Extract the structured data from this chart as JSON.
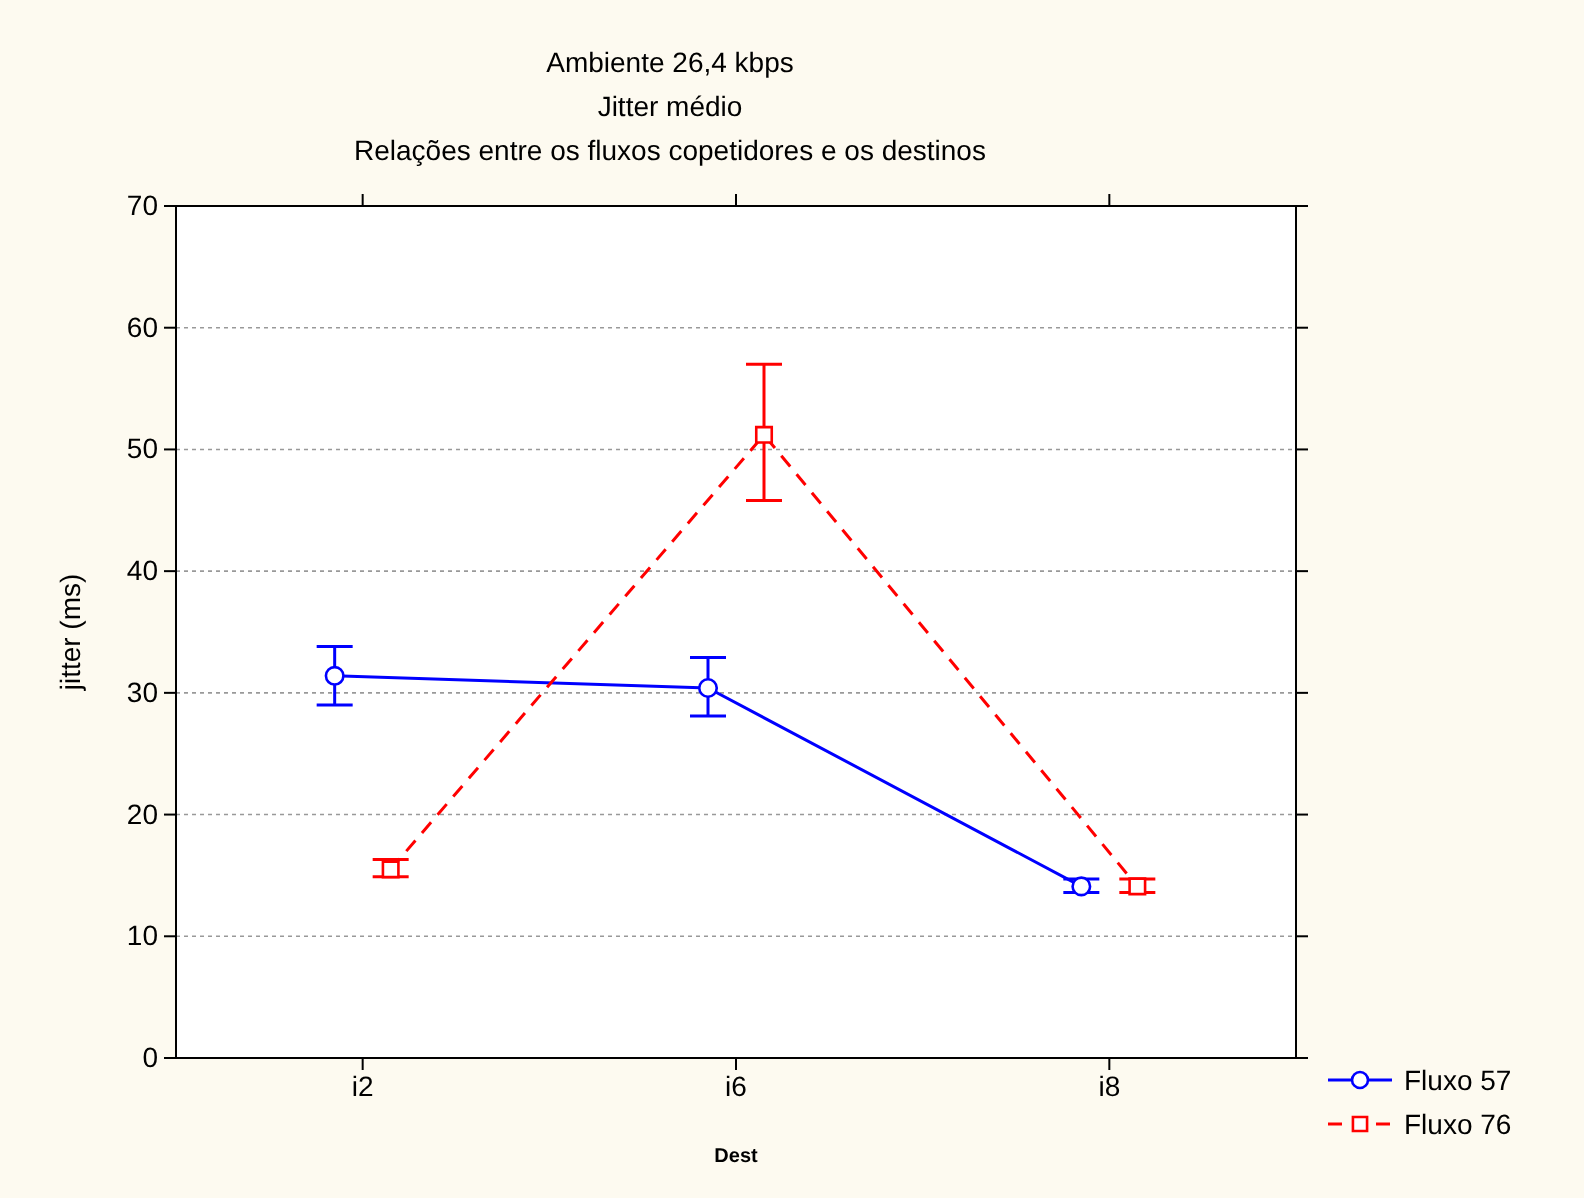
{
  "chart_data": {
    "type": "line",
    "title": "Ambiente 26,4 kbps",
    "subtitle": "Jitter médio\nRelações entre os fluxos copetidores e os destinos",
    "xlabel": "Dest",
    "ylabel": "jitter (ms)",
    "categories": [
      "i2",
      "i6",
      "i8"
    ],
    "ylim": [
      0,
      70
    ],
    "yticks": [
      0,
      10,
      20,
      30,
      40,
      50,
      60,
      70
    ],
    "grid": "y",
    "legend": "bottom right",
    "series": [
      {
        "name": "Fluxo 57",
        "color": "#0000ff",
        "marker": "circle",
        "line_style": "solid",
        "values": [
          31.4,
          30.4,
          14.1
        ],
        "errors": [
          [
            29.0,
            33.8
          ],
          [
            28.1,
            32.9
          ],
          [
            13.6,
            14.7
          ]
        ]
      },
      {
        "name": "Fluxo 76",
        "color": "#ff0000",
        "marker": "square",
        "line_style": "dashed",
        "values": [
          15.5,
          51.2,
          14.1
        ],
        "errors": [
          [
            14.9,
            16.3
          ],
          [
            45.8,
            57.0
          ],
          [
            13.6,
            14.7
          ]
        ]
      }
    ]
  }
}
